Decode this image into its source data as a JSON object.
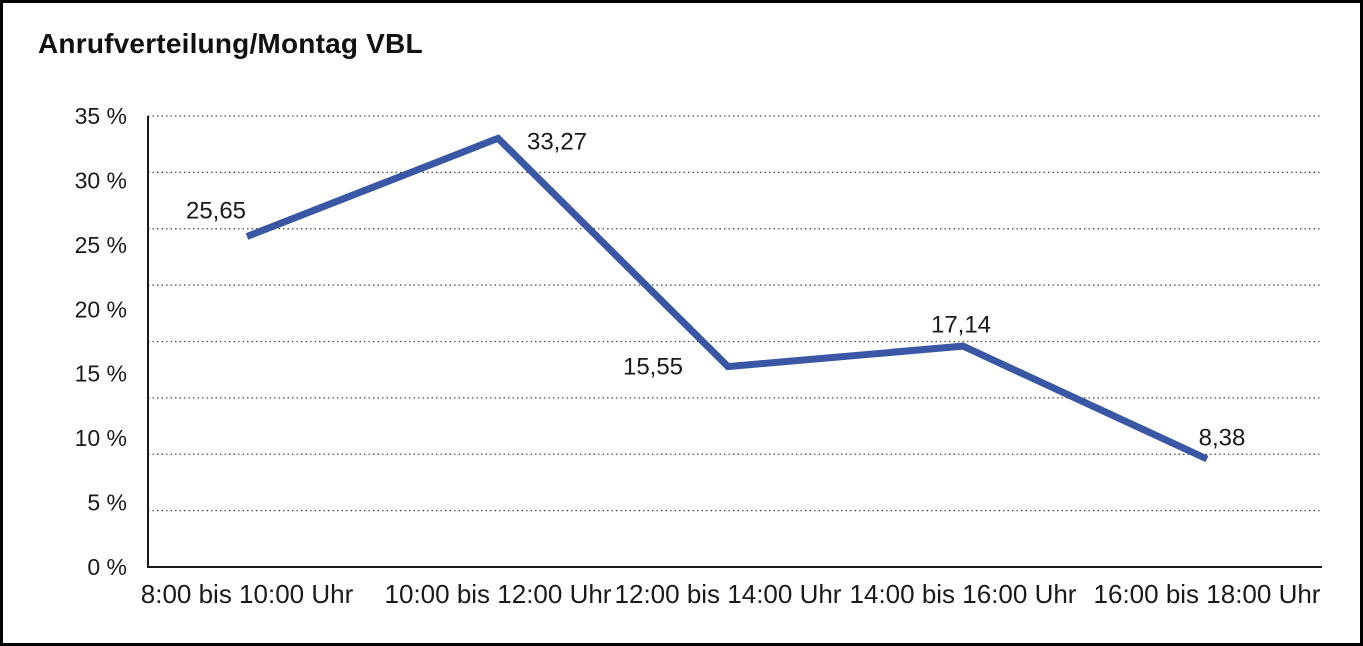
{
  "page": {
    "title": "Anrufverteilung/Montag VBL"
  },
  "chart_data": {
    "type": "line",
    "title": "Anrufverteilung/Montag VBL",
    "categories": [
      "8:00 bis 10:00 Uhr",
      "10:00 bis 12:00 Uhr",
      "12:00 bis 14:00 Uhr",
      "14:00 bis 16:00 Uhr",
      "16:00 bis 18:00 Uhr"
    ],
    "series": [
      {
        "name": "Anrufverteilung Montag VBL",
        "values": [
          25.65,
          33.27,
          15.55,
          17.14,
          8.38
        ],
        "value_labels": [
          "25,65",
          "33,27",
          "15,55",
          "17,14",
          "8,38"
        ]
      }
    ],
    "xlabel": "",
    "ylabel": "",
    "ylim": [
      0,
      35
    ],
    "yticks": [
      {
        "label": "35 %",
        "value": 35
      },
      {
        "label": "30 %",
        "value": 30
      },
      {
        "label": "25 %",
        "value": 25
      },
      {
        "label": "20 %",
        "value": 20
      },
      {
        "label": "15 %",
        "value": 15
      },
      {
        "label": "10 %",
        "value": 10
      },
      {
        "label": "5 %",
        "value": 5
      },
      {
        "label": "0 %",
        "value": 0
      }
    ],
    "grid": "horizontal-dotted",
    "grid_divisions": 8,
    "legend": "none",
    "colors": {
      "line": "#3A57A5",
      "axis": "#1a1a1a",
      "gridline": "#4a4a4a",
      "text": "#1a1a1a",
      "background": "#ffffff",
      "frame_border": "#000000"
    }
  }
}
